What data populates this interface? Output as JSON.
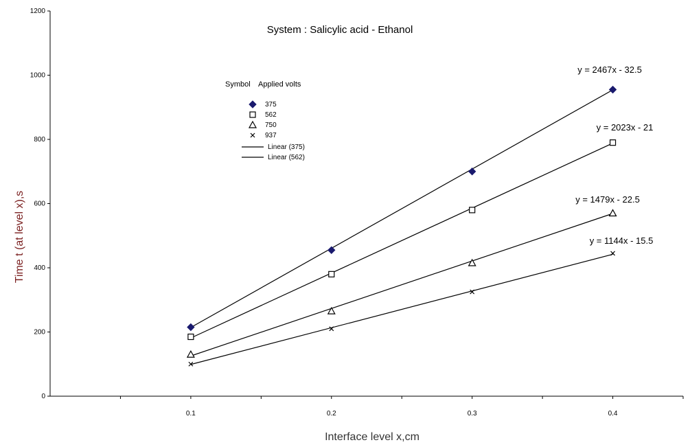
{
  "chart_data": {
    "type": "scatter",
    "title": "System :  Salicylic acid - Ethanol",
    "xlabel": "Interface level x,cm",
    "ylabel": "Time t (at level x),s",
    "xlim": [
      0,
      0.45
    ],
    "ylim": [
      0,
      1200
    ],
    "x_ticks": [
      0.1,
      0.2,
      0.3,
      0.4
    ],
    "x_tick_labels": [
      "0.1",
      "0.2",
      "0.3",
      "0.4"
    ],
    "y_ticks": [
      0,
      200,
      400,
      600,
      800,
      1000,
      1200
    ],
    "y_tick_labels": [
      "0",
      "200",
      "400",
      "600",
      "800",
      "1000",
      "1200"
    ],
    "grid": false,
    "legend_header": {
      "symbol": "Symbol",
      "volts": "Applied volts"
    },
    "series": [
      {
        "name": "375",
        "marker": "diamond",
        "x": [
          0.1,
          0.2,
          0.3,
          0.4
        ],
        "y": [
          215,
          455,
          700,
          955
        ]
      },
      {
        "name": "562",
        "marker": "square",
        "x": [
          0.1,
          0.2,
          0.3,
          0.4
        ],
        "y": [
          185,
          380,
          580,
          790
        ]
      },
      {
        "name": "750",
        "marker": "triangle",
        "x": [
          0.1,
          0.2,
          0.3,
          0.4
        ],
        "y": [
          130,
          265,
          415,
          570
        ]
      },
      {
        "name": "937",
        "marker": "x",
        "x": [
          0.1,
          0.2,
          0.3,
          0.4
        ],
        "y": [
          100,
          210,
          325,
          445
        ]
      }
    ],
    "trendlines": [
      {
        "slope": 2467,
        "intercept": -32.5,
        "equation": "y = 2467x - 32.5"
      },
      {
        "slope": 2023,
        "intercept": -21,
        "equation": "y = 2023x - 21"
      },
      {
        "slope": 1479,
        "intercept": -22.5,
        "equation": "y = 1479x - 22.5"
      },
      {
        "slope": 1144,
        "intercept": -15.5,
        "equation": "y = 1144x - 15.5"
      }
    ],
    "legend_line_entries": [
      "Linear (375)",
      "Linear (562)"
    ],
    "colors": {
      "ylabel": "#7a1f1f",
      "xlabel": "#333333",
      "marks": "#000000",
      "marker_fill_375": "#1a1a6e"
    }
  }
}
